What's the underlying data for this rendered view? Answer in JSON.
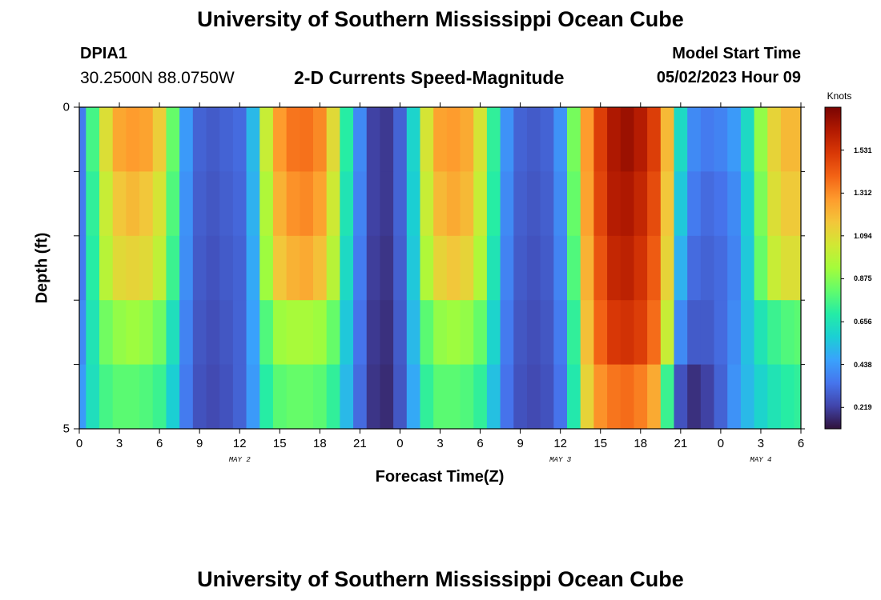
{
  "header": {
    "title": "University of Southern Mississippi Ocean Cube",
    "station": "DPIA1",
    "coords": "30.2500N  88.0750W",
    "subtitle": "2-D Currents Speed-Magnitude",
    "model_start_label": "Model Start Time",
    "model_start_value": "05/02/2023 Hour 09"
  },
  "footer": {
    "title": "University of Southern Mississippi Ocean Cube"
  },
  "colors": {
    "colormap": [
      "#30123b",
      "#4145ab",
      "#4675ed",
      "#39a2fc",
      "#1bcfd4",
      "#24eca6",
      "#61fc6c",
      "#a4fc3b",
      "#d1e834",
      "#f3c63a",
      "#fe9b2d",
      "#f36315",
      "#d93806",
      "#b11901",
      "#7a0402"
    ]
  },
  "chart_data": {
    "type": "heatmap",
    "title": "2-D Currents Speed-Magnitude",
    "xlabel": "Forecast Time(Z)",
    "ylabel": "Depth (ft)",
    "x_hours": [
      0,
      1,
      2,
      3,
      4,
      5,
      6,
      7,
      8,
      9,
      10,
      11,
      12,
      13,
      14,
      15,
      16,
      17,
      18,
      19,
      20,
      21,
      22,
      23,
      24,
      25,
      26,
      27,
      28,
      29,
      30,
      31,
      32,
      33,
      34,
      35,
      36,
      37,
      38,
      39,
      40,
      41,
      42,
      43,
      44,
      45,
      46,
      47,
      48,
      49,
      50,
      51,
      52,
      53,
      54
    ],
    "xlim": [
      0,
      54
    ],
    "x_tick_values": [
      0,
      3,
      6,
      9,
      12,
      15,
      18,
      21,
      24,
      27,
      30,
      33,
      36,
      39,
      42,
      45,
      48,
      51,
      54
    ],
    "x_tick_labels": [
      "0",
      "3",
      "6",
      "9",
      "12",
      "15",
      "18",
      "21",
      "0",
      "3",
      "6",
      "9",
      "12",
      "15",
      "18",
      "21",
      "0",
      "3",
      "6"
    ],
    "day_labels": [
      {
        "text": "MAY 2",
        "hour": 12
      },
      {
        "text": "MAY 3",
        "hour": 36
      },
      {
        "text": "MAY 4",
        "hour": 51
      }
    ],
    "ylim": [
      0,
      5
    ],
    "y_tick_values": [
      0,
      1,
      2,
      3,
      4,
      5
    ],
    "y_tick_labels": [
      "0",
      "",
      "",
      "",
      "",
      "5"
    ],
    "depth_bands": [
      0,
      1,
      2,
      3,
      4,
      5
    ],
    "colorbar": {
      "unit": "Knots",
      "min": 0.11,
      "max": 1.75,
      "tick_values": [
        0.219,
        0.438,
        0.656,
        0.875,
        1.094,
        1.312,
        1.531
      ],
      "tick_labels": [
        "0.219",
        "0.438",
        "0.656",
        "0.875",
        "1.094",
        "1.312",
        "1.531"
      ]
    },
    "speed_knots_by_depth_band": [
      [
        0.36,
        0.76,
        1.08,
        1.25,
        1.28,
        1.26,
        1.14,
        0.82,
        0.44,
        0.3,
        0.28,
        0.3,
        0.32,
        0.52,
        1.02,
        1.28,
        1.36,
        1.37,
        1.32,
        1.1,
        0.7,
        0.4,
        0.22,
        0.2,
        0.3,
        0.6,
        1.06,
        1.26,
        1.28,
        1.24,
        1.06,
        0.72,
        0.42,
        0.3,
        0.28,
        0.3,
        0.42,
        0.85,
        1.28,
        1.5,
        1.64,
        1.68,
        1.62,
        1.5,
        1.2,
        0.62,
        0.4,
        0.36,
        0.38,
        0.44,
        0.62,
        0.9,
        1.12,
        1.2,
        1.2
      ],
      [
        0.36,
        0.72,
        1.02,
        1.16,
        1.2,
        1.16,
        1.06,
        0.78,
        0.42,
        0.29,
        0.27,
        0.29,
        0.31,
        0.5,
        0.96,
        1.22,
        1.3,
        1.32,
        1.26,
        1.04,
        0.66,
        0.38,
        0.22,
        0.2,
        0.3,
        0.58,
        1.02,
        1.2,
        1.24,
        1.2,
        1.02,
        0.7,
        0.4,
        0.29,
        0.27,
        0.29,
        0.4,
        0.82,
        1.26,
        1.48,
        1.62,
        1.64,
        1.58,
        1.46,
        1.16,
        0.56,
        0.36,
        0.32,
        0.34,
        0.4,
        0.58,
        0.86,
        1.08,
        1.15,
        1.15
      ],
      [
        0.36,
        0.7,
        0.98,
        1.1,
        1.12,
        1.1,
        1.0,
        0.74,
        0.41,
        0.28,
        0.26,
        0.28,
        0.3,
        0.48,
        0.92,
        1.16,
        1.22,
        1.24,
        1.18,
        0.98,
        0.62,
        0.36,
        0.21,
        0.19,
        0.29,
        0.56,
        0.96,
        1.12,
        1.16,
        1.12,
        0.96,
        0.66,
        0.38,
        0.28,
        0.26,
        0.28,
        0.38,
        0.78,
        1.22,
        1.44,
        1.58,
        1.6,
        1.54,
        1.42,
        1.12,
        0.5,
        0.32,
        0.3,
        0.32,
        0.38,
        0.56,
        0.82,
        1.02,
        1.08,
        1.08
      ],
      [
        0.4,
        0.66,
        0.84,
        0.9,
        0.92,
        0.9,
        0.84,
        0.64,
        0.38,
        0.27,
        0.25,
        0.27,
        0.3,
        0.46,
        0.78,
        0.92,
        0.94,
        0.94,
        0.92,
        0.82,
        0.56,
        0.34,
        0.2,
        0.18,
        0.28,
        0.52,
        0.8,
        0.9,
        0.92,
        0.9,
        0.82,
        0.6,
        0.36,
        0.27,
        0.25,
        0.27,
        0.36,
        0.72,
        1.18,
        1.4,
        1.52,
        1.54,
        1.5,
        1.38,
        1.02,
        0.4,
        0.28,
        0.28,
        0.32,
        0.4,
        0.54,
        0.66,
        0.74,
        0.78,
        0.8
      ],
      [
        0.44,
        0.64,
        0.76,
        0.8,
        0.8,
        0.78,
        0.74,
        0.58,
        0.36,
        0.26,
        0.24,
        0.26,
        0.3,
        0.44,
        0.7,
        0.8,
        0.82,
        0.82,
        0.8,
        0.72,
        0.52,
        0.32,
        0.19,
        0.17,
        0.27,
        0.48,
        0.72,
        0.8,
        0.8,
        0.78,
        0.72,
        0.54,
        0.34,
        0.26,
        0.24,
        0.26,
        0.34,
        0.68,
        1.12,
        1.3,
        1.36,
        1.38,
        1.34,
        1.24,
        0.74,
        0.26,
        0.18,
        0.22,
        0.3,
        0.42,
        0.52,
        0.6,
        0.66,
        0.7,
        0.72
      ],
      [
        0.5,
        0.64,
        0.72,
        0.74,
        0.74,
        0.72,
        0.68,
        0.54,
        0.35,
        0.25,
        0.23,
        0.25,
        0.3,
        0.44,
        0.66,
        0.74,
        0.75,
        0.75,
        0.74,
        0.68,
        0.5,
        0.31,
        0.19,
        0.16,
        0.27,
        0.46,
        0.68,
        0.74,
        0.74,
        0.72,
        0.68,
        0.52,
        0.33,
        0.25,
        0.23,
        0.25,
        0.33,
        0.62,
        0.96,
        1.1,
        1.16,
        1.18,
        1.14,
        1.04,
        0.56,
        0.14,
        0.11,
        0.17,
        0.28,
        0.4,
        0.5,
        0.58,
        0.64,
        0.67,
        0.68
      ]
    ]
  }
}
